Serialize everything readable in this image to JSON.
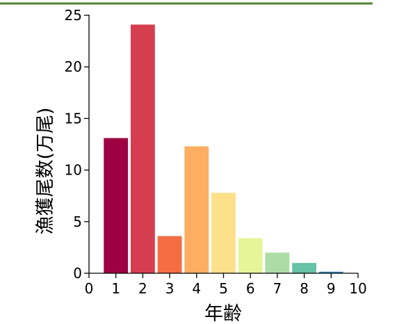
{
  "chart_data": {
    "type": "bar",
    "categories": [
      1,
      2,
      3,
      4,
      5,
      6,
      7,
      8,
      9
    ],
    "values": [
      13.1,
      24.1,
      3.6,
      12.3,
      7.8,
      3.4,
      2.0,
      1.0,
      0.15
    ],
    "colors": [
      "#9e0142",
      "#d53e4f",
      "#f46d43",
      "#fdae61",
      "#fee08b",
      "#e6f598",
      "#abdda4",
      "#66c2a5",
      "#3288bd"
    ],
    "xlabel": "年齢",
    "ylabel": "漁獲尾数(万尾)",
    "xlim": [
      0,
      10
    ],
    "ylim": [
      0,
      25
    ],
    "xticks": [
      0,
      1,
      2,
      3,
      4,
      5,
      6,
      7,
      8,
      9,
      10
    ],
    "yticks": [
      0,
      5,
      10,
      15,
      20,
      25
    ],
    "grid": false
  },
  "header_rule_color": "#538135"
}
